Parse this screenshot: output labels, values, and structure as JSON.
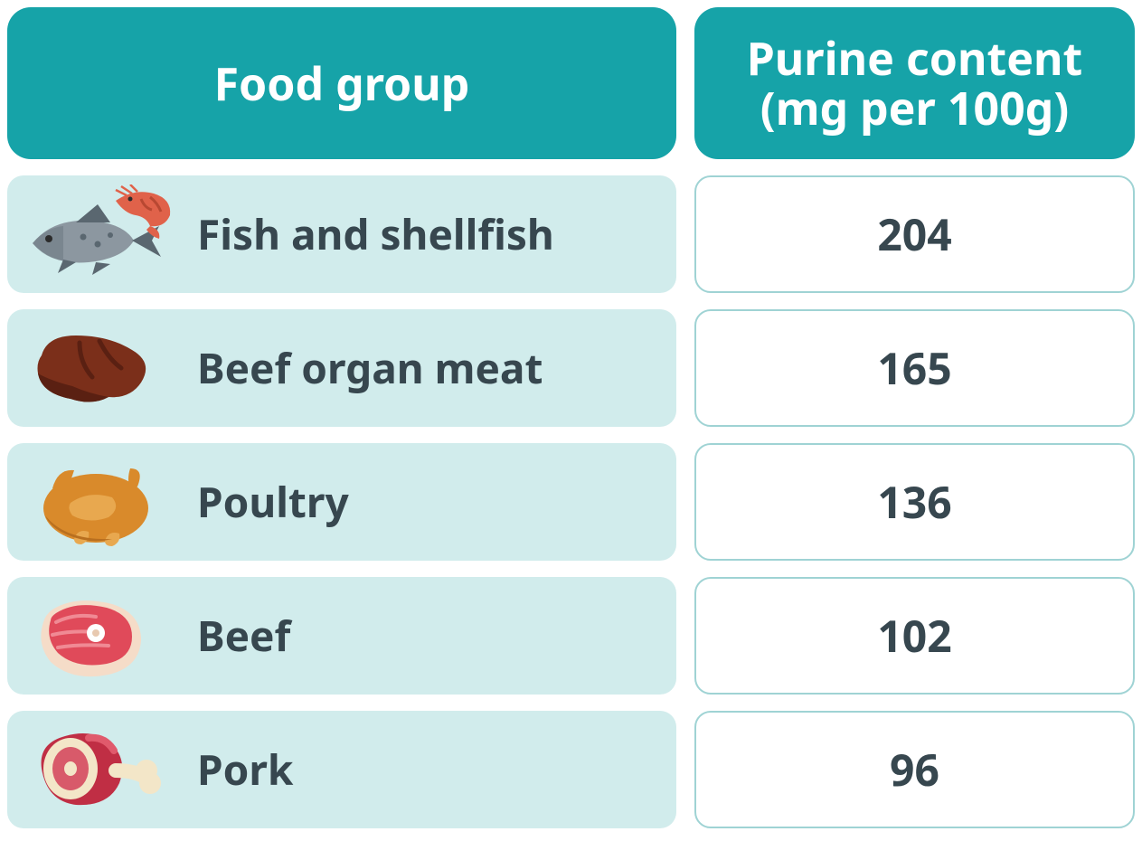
{
  "colors": {
    "header_bg": "#16a3a8",
    "header_text": "#ffffff",
    "row_bg": "#d1ecec",
    "value_border": "#9fd3d4",
    "text": "#37474f",
    "fish_body": "#8c97a0",
    "fish_dark": "#5a6770",
    "shrimp": "#e0624a",
    "liver": "#7b2f1a",
    "liver_dark": "#5a2012",
    "poultry": "#d98a2b",
    "poultry_light": "#e8a84f",
    "beef_meat": "#e04a5a",
    "beef_fat": "#f5dcc8",
    "beef_bone": "#ffffff",
    "pork": "#c02e44",
    "pork_fat": "#f3e6c8",
    "pork_meat": "#d85a6a"
  },
  "headers": {
    "food": "Food group",
    "value": "Purine content\n(mg per 100g)"
  },
  "rows": [
    {
      "icon": "fish",
      "label": "Fish and shellfish",
      "value": "204"
    },
    {
      "icon": "liver",
      "label": "Beef organ meat",
      "value": "165"
    },
    {
      "icon": "poultry",
      "label": "Poultry",
      "value": "136"
    },
    {
      "icon": "beef",
      "label": "Beef",
      "value": "102"
    },
    {
      "icon": "pork",
      "label": "Pork",
      "value": "96"
    }
  ]
}
